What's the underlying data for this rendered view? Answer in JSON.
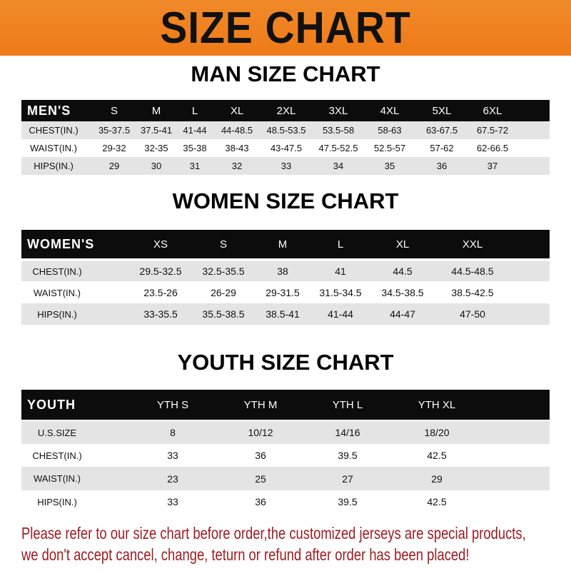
{
  "banner": {
    "title": "SIZE CHART",
    "color": "#ef801d"
  },
  "men": {
    "title": "MAN SIZE CHART",
    "header": [
      "MEN'S",
      "S",
      "M",
      "L",
      "XL",
      "2XL",
      "3XL",
      "4XL",
      "5XL",
      "6XL"
    ],
    "rows": [
      [
        "CHEST(IN.)",
        "35-37.5",
        "37.5-41",
        "41-44",
        "44-48.5",
        "48.5-53.5",
        "53.5-58",
        "58-63",
        "63-67.5",
        "67.5-72"
      ],
      [
        "WAIST(IN.)",
        "29-32",
        "32-35",
        "35-38",
        "38-43",
        "43-47.5",
        "47.5-52.5",
        "52.5-57",
        "57-62",
        "62-66.5"
      ],
      [
        "HIPS(IN.)",
        "29",
        "30",
        "31",
        "32",
        "33",
        "34",
        "35",
        "36",
        "37"
      ]
    ]
  },
  "women": {
    "title": "WOMEN SIZE CHART",
    "header": [
      "WOMEN'S",
      "XS",
      "S",
      "M",
      "L",
      "XL",
      "XXL"
    ],
    "rows": [
      [
        "CHEST(IN.)",
        "29.5-32.5",
        "32.5-35.5",
        "38",
        "41",
        "44.5",
        "44.5-48.5"
      ],
      [
        "WAIST(IN.)",
        "23.5-26",
        "26-29",
        "29-31.5",
        "31.5-34.5",
        "34.5-38.5",
        "38.5-42.5"
      ],
      [
        "HIPS(IN.)",
        "33-35.5",
        "35.5-38.5",
        "38.5-41",
        "41-44",
        "44-47",
        "47-50"
      ]
    ]
  },
  "youth": {
    "title": "YOUTH SIZE CHART",
    "header": [
      "YOUTH",
      "YTH S",
      "YTH M",
      "YTH L",
      "YTH XL"
    ],
    "rows": [
      [
        "U.S.SIZE",
        "8",
        "10/12",
        "14/16",
        "18/20"
      ],
      [
        "CHEST(IN.)",
        "33",
        "36",
        "39.5",
        "42.5"
      ],
      [
        "WAIST(IN.)",
        "23",
        "25",
        "27",
        "29"
      ],
      [
        "HIPS(IN.)",
        "33",
        "36",
        "39.5",
        "42.5"
      ]
    ]
  },
  "note": {
    "line1": "Please refer to our size chart before order,the customized jerseys are special products,",
    "line2": "we don't accept cancel, change, teturn or refund after order has been placed!",
    "color": "#9e1a1f"
  }
}
